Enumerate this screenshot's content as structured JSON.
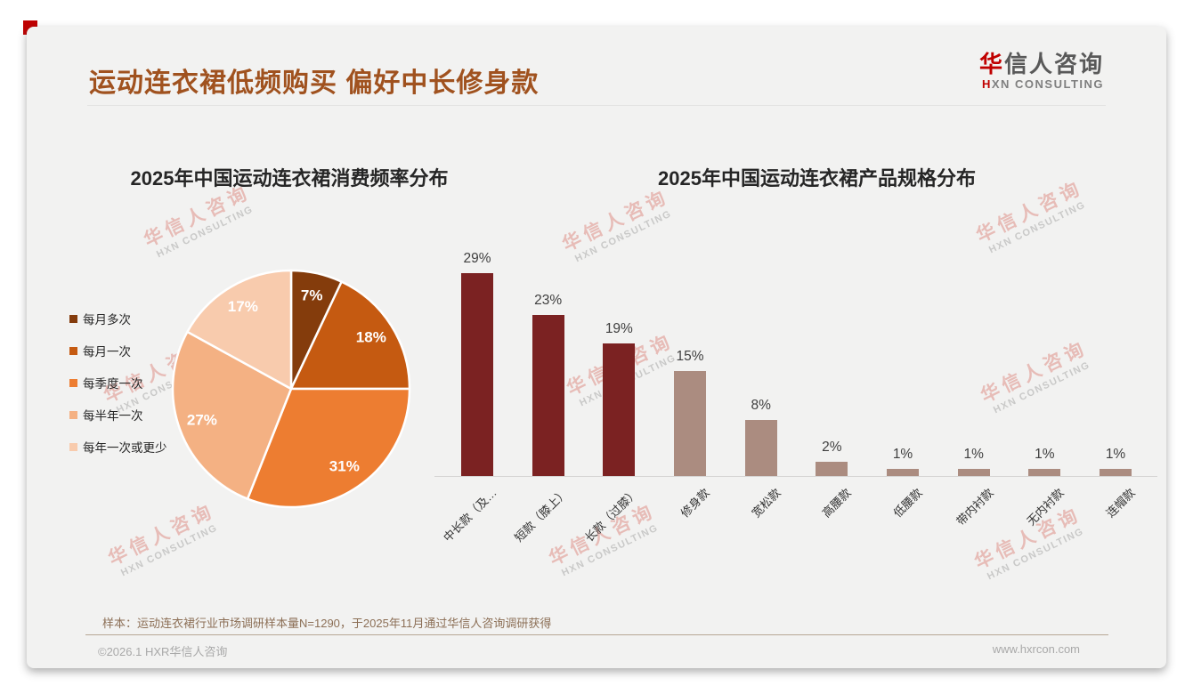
{
  "theme": {
    "accent_red": "#C00000",
    "title_color": "#A0521F",
    "note_color": "#8C6F56",
    "muted_color": "#A9A9A9"
  },
  "header": {
    "title": "运动连衣裙低频购买 偏好中长修身款",
    "logo": {
      "cn_accent": "华",
      "cn_rest": "信人咨询",
      "en_accent": "H",
      "en_rest": "XN CONSULTING"
    }
  },
  "watermark": {
    "line1": "华信人咨询",
    "line2": "HXN CONSULTING"
  },
  "chart_data": [
    {
      "type": "pie",
      "title": "2025年中国运动连衣裙消费频率分布",
      "labels": [
        "每月多次",
        "每月一次",
        "每季度一次",
        "每半年一次",
        "每年一次或更少"
      ],
      "values": [
        7,
        18,
        31,
        27,
        17
      ],
      "colors": [
        "#843C0C",
        "#C55A11",
        "#ED7D31",
        "#F4B183",
        "#F8CBAD"
      ],
      "start_angle_deg": 0,
      "direction": "clockwise",
      "legend_position": "left",
      "data_label_format": "percent"
    },
    {
      "type": "bar",
      "title": "2025年中国运动连衣裙产品规格分布",
      "categories": [
        "中长款（及…",
        "短款（膝上）",
        "长款（过膝）",
        "修身款",
        "宽松款",
        "高腰款",
        "低腰款",
        "带内衬款",
        "无内衬款",
        "连帽款"
      ],
      "values": [
        29,
        23,
        19,
        15,
        8,
        2,
        1,
        1,
        1,
        1
      ],
      "bar_colors": [
        "#7B2222",
        "#7B2222",
        "#7B2222",
        "#AB8C80",
        "#AB8C80",
        "#AB8C80",
        "#AB8C80",
        "#AB8C80",
        "#AB8C80",
        "#AB8C80"
      ],
      "value_suffix": "%",
      "ylim": [
        0,
        29
      ],
      "grid": false,
      "legend": "none"
    }
  ],
  "footer": {
    "note": "样本：运动连衣裙行业市场调研样本量N=1290，于2025年11月通过华信人咨询调研获得",
    "copyright": "©2026.1 HXR华信人咨询",
    "website": "www.hxrcon.com"
  }
}
